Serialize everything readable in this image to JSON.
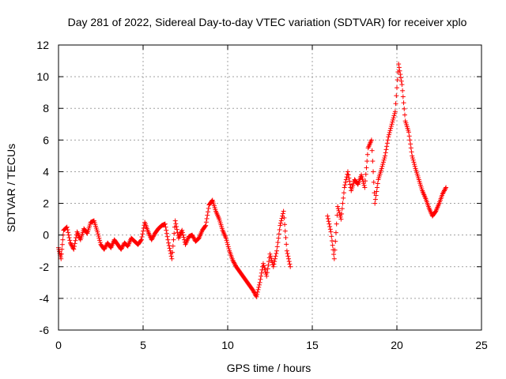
{
  "chart_data": {
    "type": "scatter",
    "title": "Day 281 of 2022, Sidereal Day-to-day VTEC variation (SDTVAR) for receiver xplo",
    "xlabel": "GPS time / hours",
    "ylabel": "SDTVAR / TECUs",
    "xlim": [
      0,
      25
    ],
    "ylim": [
      -6,
      12
    ],
    "xticks": [
      0,
      5,
      10,
      15,
      20,
      25
    ],
    "yticks": [
      -6,
      -4,
      -2,
      0,
      2,
      4,
      6,
      8,
      10,
      12
    ],
    "xtick_labels": [
      "0",
      "5",
      "10",
      "15",
      "20",
      "25"
    ],
    "ytick_labels": [
      "-6",
      "-4",
      "-2",
      "0",
      "2",
      "4",
      "6",
      "8",
      "10",
      "12"
    ],
    "grid": true,
    "marker": "+",
    "color": "#ff0000",
    "series": [
      {
        "name": "SDTVAR",
        "x": [
          0.0,
          0.15,
          0.3,
          0.5,
          0.7,
          0.9,
          1.1,
          1.3,
          1.5,
          1.7,
          1.9,
          2.1,
          2.3,
          2.5,
          2.7,
          2.9,
          3.1,
          3.3,
          3.5,
          3.7,
          3.9,
          4.1,
          4.3,
          4.5,
          4.7,
          4.9,
          5.1,
          5.3,
          5.5,
          5.7,
          5.9,
          6.1,
          6.3,
          6.5,
          6.7,
          6.9,
          7.1,
          7.3,
          7.5,
          7.7,
          7.9,
          8.1,
          8.3,
          8.5,
          8.7,
          8.9,
          9.1,
          9.3,
          9.5,
          9.7,
          9.9,
          10.1,
          10.3,
          10.5,
          10.7,
          10.9,
          11.1,
          11.3,
          11.5,
          11.7,
          11.9,
          12.1,
          12.3,
          12.5,
          12.7,
          12.9,
          13.1,
          13.3,
          13.5,
          13.7,
          15.9,
          16.1,
          16.3,
          16.5,
          16.7,
          16.9,
          17.1,
          17.3,
          17.5,
          17.7,
          17.9,
          18.1,
          18.3,
          18.5,
          18.7,
          18.9,
          19.1,
          19.3,
          19.5,
          19.7,
          19.9,
          20.1,
          20.3,
          20.5,
          20.7,
          20.9,
          21.1,
          21.3,
          21.5,
          21.7,
          21.9,
          22.1,
          22.3,
          22.5,
          22.7,
          22.9
        ],
        "y": [
          -0.8,
          -1.5,
          0.3,
          0.5,
          -0.5,
          -0.9,
          0.2,
          -0.3,
          0.4,
          0.1,
          0.8,
          0.9,
          0.2,
          -0.6,
          -0.9,
          -0.5,
          -0.8,
          -0.3,
          -0.6,
          -0.9,
          -0.5,
          -0.7,
          -0.2,
          -0.4,
          -0.6,
          -0.3,
          0.8,
          0.2,
          -0.3,
          0.1,
          0.4,
          0.6,
          0.7,
          -0.5,
          -1.5,
          0.9,
          -0.2,
          0.3,
          -0.6,
          -0.1,
          0.0,
          -0.4,
          -0.2,
          0.3,
          0.6,
          1.9,
          2.2,
          1.5,
          1.0,
          0.3,
          -0.2,
          -1.0,
          -1.6,
          -2.0,
          -2.3,
          -2.6,
          -2.9,
          -3.2,
          -3.5,
          -3.9,
          -3.0,
          -1.8,
          -2.6,
          -1.2,
          -2.0,
          -1.0,
          0.6,
          1.5,
          -1.0,
          -2.0,
          1.2,
          0.2,
          -1.5,
          1.8,
          1.0,
          3.0,
          4.0,
          2.8,
          3.5,
          3.2,
          3.8,
          3.0,
          5.5,
          6.0,
          2.0,
          3.5,
          4.2,
          5.0,
          6.2,
          7.0,
          7.8,
          10.8,
          9.5,
          7.2,
          6.5,
          5.0,
          4.2,
          3.5,
          2.8,
          2.3,
          1.7,
          1.2,
          1.5,
          2.0,
          2.6,
          3.0
        ]
      }
    ]
  }
}
